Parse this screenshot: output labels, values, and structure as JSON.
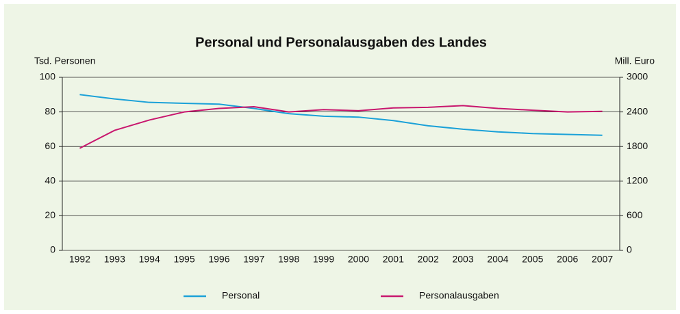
{
  "chart_data": {
    "type": "line",
    "title": "Personal und Personalausgaben des Landes",
    "y_label": "Tsd. Personen",
    "y2_label": "Mill. Euro",
    "categories": [
      "1992",
      "1993",
      "1994",
      "1995",
      "1996",
      "1997",
      "1998",
      "1999",
      "2000",
      "2001",
      "2002",
      "2003",
      "2004",
      "2005",
      "2006",
      "2007"
    ],
    "series": [
      {
        "name": "Personal",
        "color": "#1ba1d8",
        "values": [
          90,
          87.5,
          85.5,
          85,
          84.5,
          82,
          79,
          77.5,
          77,
          75,
          72,
          70,
          68.5,
          67.5,
          67,
          66.5
        ]
      },
      {
        "name": "Personalausgaben",
        "color": "#c8176e",
        "axis": "y2",
        "values": [
          1770,
          2080,
          2260,
          2400,
          2460,
          2490,
          2400,
          2440,
          2420,
          2470,
          2480,
          2510,
          2460,
          2430,
          2400,
          2410
        ]
      }
    ],
    "ylim": [
      0,
      100
    ],
    "yticks": [
      0,
      20,
      40,
      60,
      80,
      100
    ],
    "y2lim": [
      0,
      3000
    ],
    "y2ticks": [
      0,
      600,
      1200,
      1800,
      2400,
      3000
    ],
    "grid": true,
    "legend": "bottom"
  }
}
